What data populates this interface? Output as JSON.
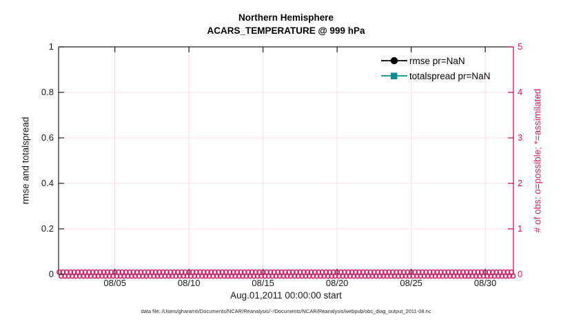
{
  "figure": {
    "title_line1": "Northern Hemisphere",
    "title_line2": "ACARS_TEMPERATURE @ 999 hPa",
    "footer": "data file: /Users/gharamti/Documents/NCAR/Reanalysis/~/Documents/NCAR/Reanalysis/webpub/obs_diag_output_2011-08.nc"
  },
  "colors": {
    "obs_pink": "#D81E68",
    "grid_pink": "#F8DCE8",
    "axis_black": "#1a1a1a",
    "rmse_black": "#000000",
    "totalspread_teal": "#0E8F8F",
    "background": "#ffffff"
  },
  "chart_data": {
    "type": "line",
    "title": "Northern Hemisphere",
    "subtitle": "ACARS_TEMPERATURE @ 999 hPa",
    "xlabel": "Aug.01,2011 00:00:00 start",
    "ylabel_left": "rmse and totalspread",
    "ylabel_right": "# of obs: o=possible; *=assimilated",
    "grid": true,
    "x_axis": {
      "lim_days_since_aug1": [
        0.2,
        30.9
      ],
      "tick_values_days": [
        4,
        9,
        14,
        19,
        24,
        29
      ],
      "tick_labels": [
        "08/05",
        "08/10",
        "08/15",
        "08/20",
        "08/25",
        "08/30"
      ]
    },
    "y_left_axis": {
      "lim": [
        0,
        1
      ],
      "tick_values": [
        0,
        0.2,
        0.4,
        0.6,
        0.8,
        1
      ],
      "tick_labels": [
        "0",
        "0.2",
        "0.4",
        "0.6",
        "0.8",
        "1"
      ]
    },
    "y_right_axis": {
      "lim": [
        0,
        5
      ],
      "tick_values": [
        0,
        1,
        2,
        3,
        4,
        5
      ],
      "tick_labels": [
        "0",
        "1",
        "2",
        "3",
        "4",
        "5"
      ]
    },
    "legend": {
      "position": "top-right-inside",
      "box": false,
      "entries": [
        {
          "label": "rmse pr=NaN",
          "color": "#000000",
          "marker": "circle"
        },
        {
          "label": "totalspread pr=NaN",
          "color": "#0E8F8F",
          "marker": "square"
        }
      ]
    },
    "series": [
      {
        "name": "rmse",
        "pr": "NaN",
        "marker": "circle",
        "color": "#000000",
        "values": []
      },
      {
        "name": "totalspread",
        "pr": "NaN",
        "marker": "square",
        "color": "#0E8F8F",
        "values": []
      }
    ],
    "obs_counts": {
      "axis": "right",
      "marker_possible": "o",
      "marker_assimilated": "*",
      "color": "#D81E68",
      "bin_start_day": 0.25,
      "bin_end_day": 30.75,
      "bin_step_days": 0.25,
      "possible_per_bin": 0,
      "assimilated_per_bin": 0
    }
  }
}
